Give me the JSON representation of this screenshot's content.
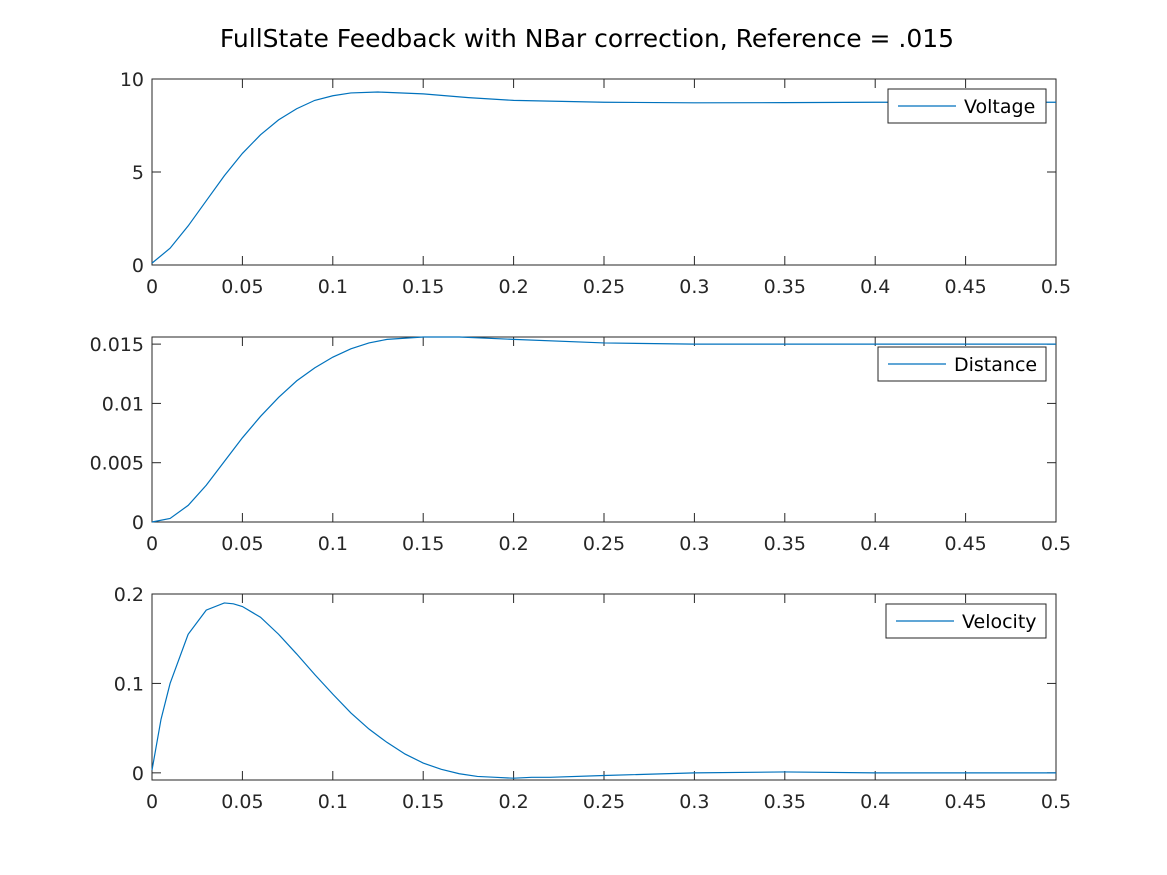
{
  "figure_title": "FullState Feedback with NBar correction, Reference = .015",
  "line_color": "#0072BD",
  "chart_data": [
    {
      "type": "line",
      "title": "",
      "xlabel": "",
      "ylabel": "",
      "xlim": [
        0,
        0.5
      ],
      "ylim": [
        0,
        10
      ],
      "x_ticks": [
        0,
        0.05,
        0.1,
        0.15,
        0.2,
        0.25,
        0.3,
        0.35,
        0.4,
        0.45,
        0.5
      ],
      "x_tick_labels": [
        "0",
        "0.05",
        "0.1",
        "0.15",
        "0.2",
        "0.25",
        "0.3",
        "0.35",
        "0.4",
        "0.45",
        "0.5"
      ],
      "y_ticks": [
        0,
        5,
        10
      ],
      "y_tick_labels": [
        "0",
        "5",
        "10"
      ],
      "legend_position": "top-right",
      "grid": false,
      "series": [
        {
          "name": "Voltage",
          "x": [
            0,
            0.01,
            0.02,
            0.03,
            0.04,
            0.05,
            0.06,
            0.07,
            0.08,
            0.09,
            0.1,
            0.11,
            0.125,
            0.15,
            0.175,
            0.2,
            0.25,
            0.3,
            0.35,
            0.4,
            0.45,
            0.5
          ],
          "y": [
            0.1,
            0.9,
            2.1,
            3.45,
            4.8,
            6.0,
            7.0,
            7.8,
            8.4,
            8.85,
            9.1,
            9.25,
            9.3,
            9.2,
            9.0,
            8.85,
            8.75,
            8.72,
            8.73,
            8.75,
            8.75,
            8.75
          ]
        }
      ]
    },
    {
      "type": "line",
      "title": "",
      "xlabel": "",
      "ylabel": "",
      "xlim": [
        0,
        0.5
      ],
      "ylim": [
        0,
        0.0156
      ],
      "x_ticks": [
        0,
        0.05,
        0.1,
        0.15,
        0.2,
        0.25,
        0.3,
        0.35,
        0.4,
        0.45,
        0.5
      ],
      "x_tick_labels": [
        "0",
        "0.05",
        "0.1",
        "0.15",
        "0.2",
        "0.25",
        "0.3",
        "0.35",
        "0.4",
        "0.45",
        "0.5"
      ],
      "y_ticks": [
        0,
        0.005,
        0.01,
        0.015
      ],
      "y_tick_labels": [
        "0",
        "0.005",
        "0.01",
        "0.015"
      ],
      "legend_position": "top-right",
      "grid": false,
      "series": [
        {
          "name": "Distance",
          "x": [
            0,
            0.01,
            0.02,
            0.03,
            0.04,
            0.05,
            0.06,
            0.07,
            0.08,
            0.09,
            0.1,
            0.11,
            0.12,
            0.13,
            0.15,
            0.17,
            0.2,
            0.25,
            0.3,
            0.35,
            0.4,
            0.45,
            0.5
          ],
          "y": [
            0,
            0.0003,
            0.0014,
            0.0031,
            0.0051,
            0.0071,
            0.0089,
            0.0105,
            0.0119,
            0.013,
            0.0139,
            0.0146,
            0.0151,
            0.0154,
            0.0156,
            0.0156,
            0.0154,
            0.0151,
            0.015,
            0.015,
            0.015,
            0.015,
            0.015
          ]
        }
      ]
    },
    {
      "type": "line",
      "title": "",
      "xlabel": "",
      "ylabel": "",
      "xlim": [
        0,
        0.5
      ],
      "ylim": [
        -0.008,
        0.2
      ],
      "x_ticks": [
        0,
        0.05,
        0.1,
        0.15,
        0.2,
        0.25,
        0.3,
        0.35,
        0.4,
        0.45,
        0.5
      ],
      "x_tick_labels": [
        "0",
        "0.05",
        "0.1",
        "0.15",
        "0.2",
        "0.25",
        "0.3",
        "0.35",
        "0.4",
        "0.45",
        "0.5"
      ],
      "y_ticks": [
        0,
        0.1,
        0.2
      ],
      "y_tick_labels": [
        "0",
        "0.1",
        "0.2"
      ],
      "legend_position": "top-right",
      "grid": false,
      "series": [
        {
          "name": "Velocity",
          "x": [
            0,
            0.005,
            0.01,
            0.02,
            0.03,
            0.04,
            0.045,
            0.05,
            0.06,
            0.07,
            0.08,
            0.09,
            0.1,
            0.11,
            0.12,
            0.13,
            0.14,
            0.15,
            0.16,
            0.17,
            0.18,
            0.19,
            0.2,
            0.21,
            0.22,
            0.25,
            0.3,
            0.35,
            0.4,
            0.45,
            0.5
          ],
          "y": [
            0.003,
            0.06,
            0.1,
            0.155,
            0.182,
            0.19,
            0.189,
            0.186,
            0.174,
            0.155,
            0.133,
            0.11,
            0.088,
            0.067,
            0.049,
            0.034,
            0.021,
            0.011,
            0.004,
            -0.001,
            -0.004,
            -0.005,
            -0.006,
            -0.005,
            -0.005,
            -0.003,
            0.0,
            0.001,
            0.0,
            0.0,
            0.0
          ]
        }
      ]
    }
  ]
}
